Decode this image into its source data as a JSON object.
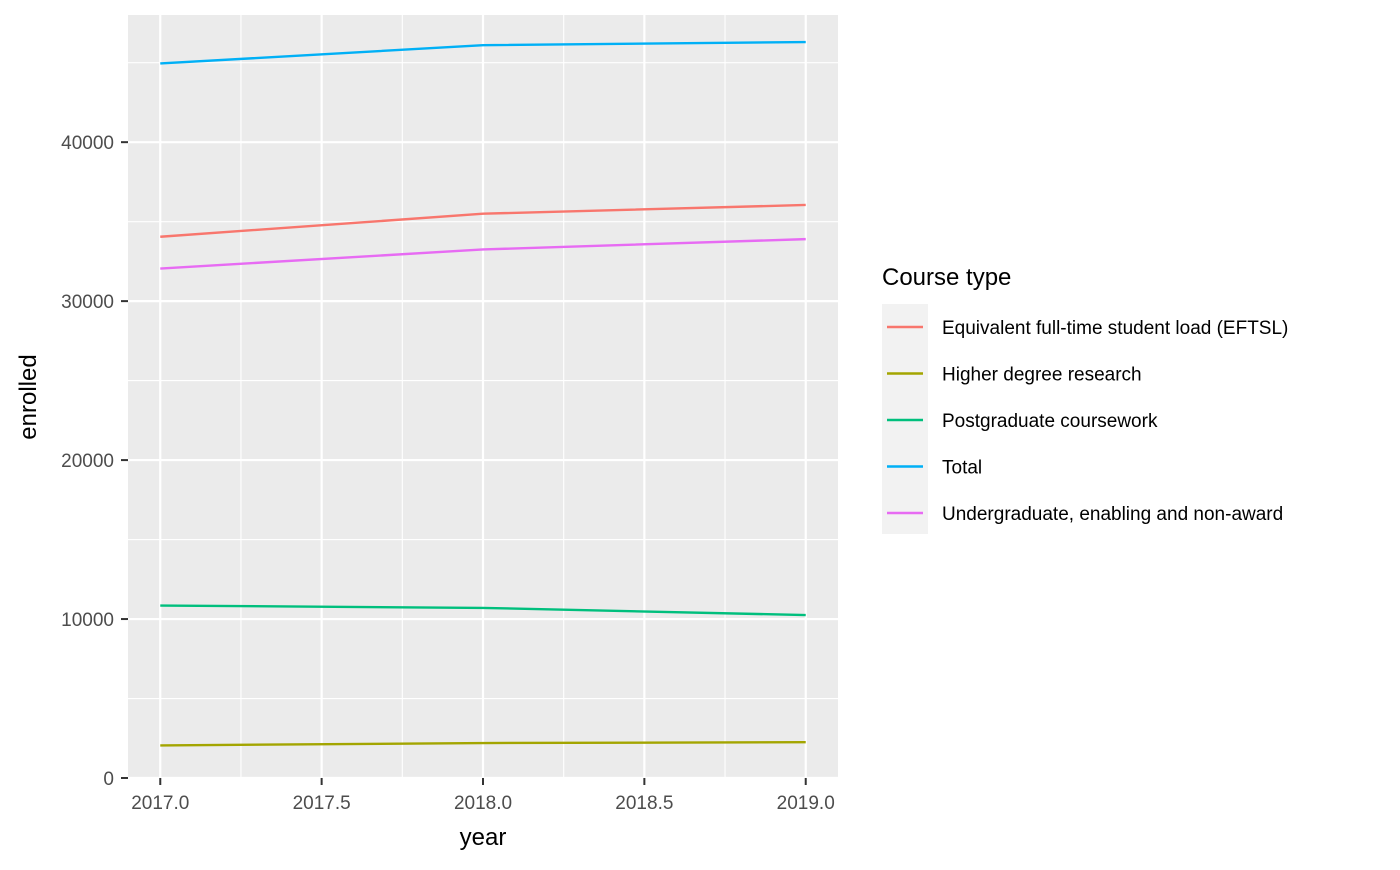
{
  "chart_data": {
    "type": "line",
    "title": "",
    "xlabel": "year",
    "ylabel": "enrolled",
    "x": [
      2017,
      2018,
      2019
    ],
    "xlim": [
      2016.9,
      2019.1
    ],
    "ylim": [
      0,
      48000
    ],
    "x_ticks": [
      {
        "value": 2017.0,
        "label": "2017.0"
      },
      {
        "value": 2017.5,
        "label": "2017.5"
      },
      {
        "value": 2018.0,
        "label": "2018.0"
      },
      {
        "value": 2018.5,
        "label": "2018.5"
      },
      {
        "value": 2019.0,
        "label": "2019.0"
      }
    ],
    "y_ticks": [
      {
        "value": 0,
        "label": "0"
      },
      {
        "value": 10000,
        "label": "10000"
      },
      {
        "value": 20000,
        "label": "20000"
      },
      {
        "value": 30000,
        "label": "30000"
      },
      {
        "value": 40000,
        "label": "40000"
      }
    ],
    "grid": true,
    "legend": {
      "title": "Course type",
      "position": "right"
    },
    "series": [
      {
        "name": "Equivalent full-time student load (EFTSL)",
        "color": "#F8766D",
        "values": [
          34050,
          35500,
          36050
        ]
      },
      {
        "name": "Higher degree research",
        "color": "#A3A500",
        "values": [
          2050,
          2200,
          2250
        ]
      },
      {
        "name": "Postgraduate coursework",
        "color": "#00BF7D",
        "values": [
          10850,
          10700,
          10250
        ]
      },
      {
        "name": "Total",
        "color": "#00B0F6",
        "values": [
          44950,
          46100,
          46300
        ]
      },
      {
        "name": "Undergraduate, enabling and non-award",
        "color": "#E76BF3",
        "values": [
          32050,
          33250,
          33900
        ]
      }
    ]
  }
}
